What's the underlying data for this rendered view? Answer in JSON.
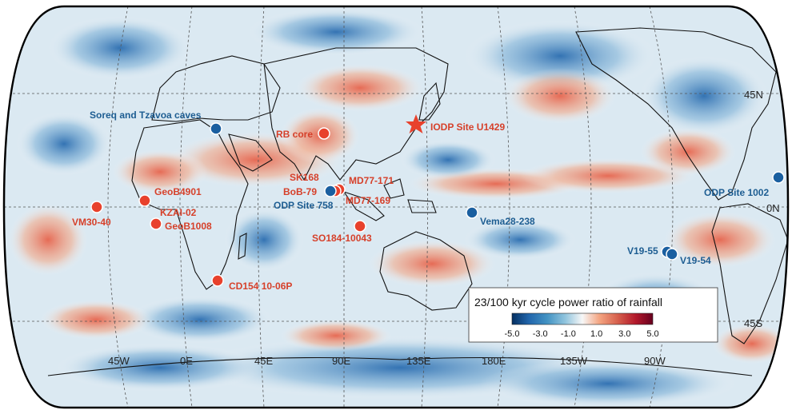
{
  "map": {
    "lon_labels": [
      "45W",
      "0E",
      "45E",
      "90E",
      "135E",
      "180E",
      "135W",
      "90W"
    ],
    "lat_labels": [
      "45N",
      "0N",
      "45S"
    ],
    "colors": {
      "positive": "#e8412c",
      "negative": "#1a5fa0",
      "red_label": "#d6402a",
      "blue_label": "#1d5d92"
    }
  },
  "colorbar": {
    "title": "23/100 kyr cycle power ratio of rainfall",
    "ticks": [
      "-5.0",
      "-3.0",
      "-1.0",
      "1.0",
      "3.0",
      "5.0"
    ],
    "range": [
      -5.0,
      5.0
    ],
    "colors": [
      "#053061",
      "#2166ac",
      "#4393c3",
      "#92c5de",
      "#f7f7f7",
      "#f4a582",
      "#d6604d",
      "#b2182b",
      "#67001f"
    ]
  },
  "sites": [
    {
      "name": "Soreq and Tzavoa caves",
      "type": "blue"
    },
    {
      "name": "RB core",
      "type": "red"
    },
    {
      "name": "IODP Site U1429",
      "type": "star"
    },
    {
      "name": "SK168",
      "type": "red"
    },
    {
      "name": "MD77-171",
      "type": "red"
    },
    {
      "name": "BoB-79",
      "type": "red"
    },
    {
      "name": "ODP Site 758",
      "type": "blue"
    },
    {
      "name": "MD77-169",
      "type": "red"
    },
    {
      "name": "GeoB4901",
      "type": "red"
    },
    {
      "name": "KZAI-02",
      "type": "red"
    },
    {
      "name": "VM30-40",
      "type": "red"
    },
    {
      "name": "GeoB1008",
      "type": "red"
    },
    {
      "name": "SO184-10043",
      "type": "red"
    },
    {
      "name": "CD154 10-06P",
      "type": "red"
    },
    {
      "name": "Vema28-238",
      "type": "blue"
    },
    {
      "name": "ODP Site 1002",
      "type": "blue"
    },
    {
      "name": "V19-55",
      "type": "blue"
    },
    {
      "name": "V19-54",
      "type": "blue"
    }
  ]
}
